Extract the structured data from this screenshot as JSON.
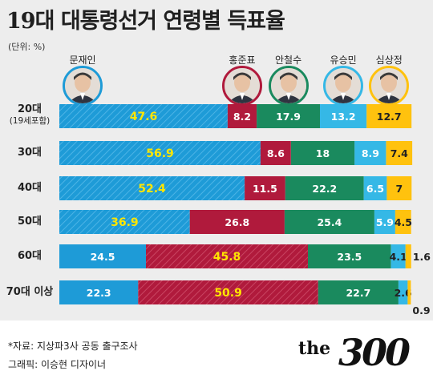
{
  "title": "19대 대통령선거 연령별 득표율",
  "unit_label": "(단위: %)",
  "colors": {
    "moon": "#1e9bd7",
    "hong": "#b01a3c",
    "ahn": "#1a8a5e",
    "yoo": "#35b8e6",
    "sim": "#ffc20e",
    "highlight_text": "#ffe600",
    "normal_text": "#ffffff"
  },
  "candidates": [
    {
      "name": "문재인",
      "key": "moon",
      "icon": "portrait-moon-icon"
    },
    {
      "name": "홍준표",
      "key": "hong",
      "icon": "portrait-hong-icon"
    },
    {
      "name": "안철수",
      "key": "ahn",
      "icon": "portrait-ahn-icon"
    },
    {
      "name": "유승민",
      "key": "yoo",
      "icon": "portrait-yoo-icon"
    },
    {
      "name": "심상정",
      "key": "sim",
      "icon": "portrait-sim-icon"
    }
  ],
  "chart_data": {
    "type": "bar",
    "orientation": "horizontal-stacked",
    "categories": [
      "20대",
      "30대",
      "40대",
      "50대",
      "60대",
      "70대 이상"
    ],
    "category_sublabels": [
      "(19세포함)",
      "",
      "",
      "",
      "",
      ""
    ],
    "series": [
      {
        "name": "문재인",
        "values": [
          47.6,
          56.9,
          52.4,
          36.9,
          24.5,
          22.3
        ]
      },
      {
        "name": "홍준표",
        "values": [
          8.2,
          8.6,
          11.5,
          26.8,
          45.8,
          50.9
        ]
      },
      {
        "name": "안철수",
        "values": [
          17.9,
          18.0,
          22.2,
          25.4,
          23.5,
          22.7
        ]
      },
      {
        "name": "유승민",
        "values": [
          13.2,
          8.9,
          6.5,
          5.9,
          4.1,
          2.6
        ]
      },
      {
        "name": "심상정",
        "values": [
          12.7,
          7.4,
          7.0,
          4.5,
          1.6,
          0.9
        ]
      }
    ],
    "winner_highlight": "hatched leading segment with yellow label",
    "xlim": [
      0,
      100
    ]
  },
  "footer": {
    "source": "*자료: 지상파3사 공동 출구조사",
    "credit": "그래픽: 이승현 디자이너"
  },
  "logo": {
    "prefix": "the",
    "number": "300"
  }
}
